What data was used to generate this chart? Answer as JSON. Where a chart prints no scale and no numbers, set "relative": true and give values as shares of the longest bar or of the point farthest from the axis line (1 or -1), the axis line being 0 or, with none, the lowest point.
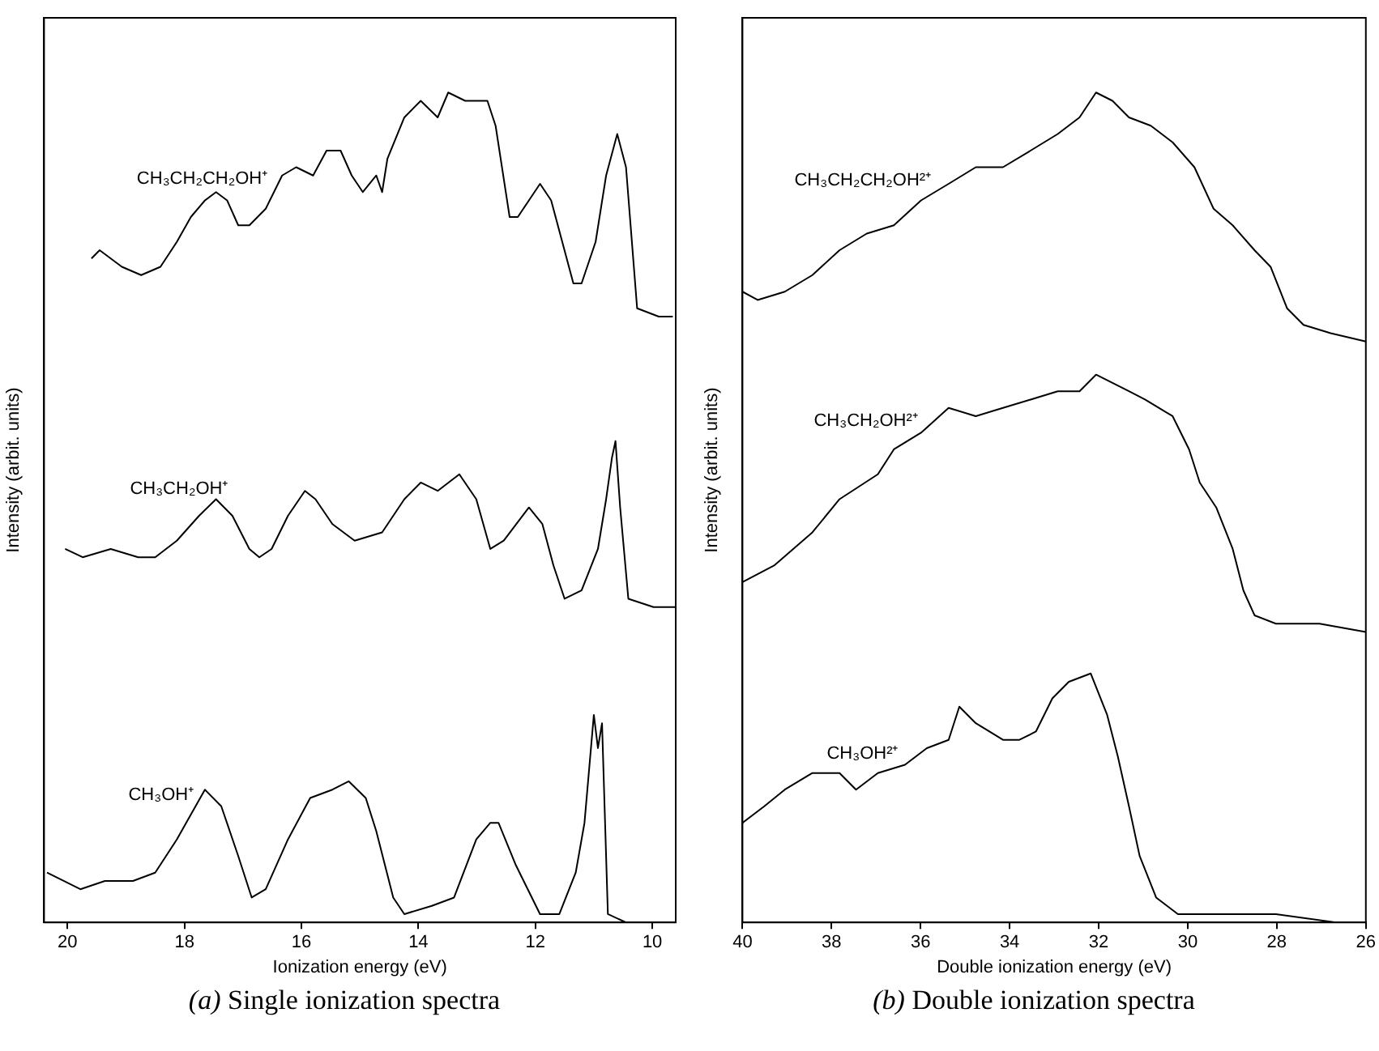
{
  "chart_data": [
    {
      "type": "line",
      "title": "(a) Single ionization spectra",
      "xlabel": "Ionization energy (eV)",
      "ylabel": "Intensity (arbit. units)",
      "relative": true,
      "xlim": [
        20.4,
        9.6
      ],
      "xticks": [
        20,
        18,
        16,
        14,
        12,
        10
      ],
      "series": [
        {
          "name": "CH₃CH₂CH₂OH⁺",
          "color": "#000000",
          "x": [
            19.59,
            19.45,
            19.07,
            18.74,
            18.41,
            18.13,
            17.89,
            17.65,
            17.46,
            17.27,
            17.08,
            16.89,
            16.61,
            16.33,
            16.09,
            15.8,
            15.57,
            15.33,
            15.14,
            14.95,
            14.72,
            14.62,
            14.53,
            14.24,
            13.96,
            13.67,
            13.49,
            13.2,
            12.82,
            12.68,
            12.44,
            12.3,
            12.11,
            11.92,
            11.73,
            11.54,
            11.35,
            11.21,
            10.97,
            10.79,
            10.6,
            10.45,
            10.26,
            9.89,
            9.65
          ],
          "values": [
            0.8,
            0.81,
            0.79,
            0.78,
            0.79,
            0.82,
            0.85,
            0.87,
            0.88,
            0.87,
            0.84,
            0.84,
            0.86,
            0.9,
            0.91,
            0.9,
            0.93,
            0.93,
            0.9,
            0.88,
            0.9,
            0.88,
            0.92,
            0.97,
            0.99,
            0.97,
            1.0,
            0.99,
            0.99,
            0.96,
            0.85,
            0.85,
            0.87,
            0.89,
            0.87,
            0.82,
            0.77,
            0.77,
            0.82,
            0.9,
            0.95,
            0.91,
            0.74,
            0.73,
            0.73
          ]
        },
        {
          "name": "CH₃CH₂OH⁺",
          "color": "#000000",
          "x": [
            20.04,
            19.74,
            19.26,
            18.79,
            18.5,
            18.13,
            17.75,
            17.46,
            17.18,
            16.89,
            16.72,
            16.51,
            16.23,
            15.94,
            15.76,
            15.47,
            15.09,
            14.62,
            14.24,
            13.96,
            13.67,
            13.3,
            13.01,
            12.77,
            12.54,
            12.11,
            11.88,
            11.69,
            11.5,
            11.21,
            10.93,
            10.79,
            10.69,
            10.63,
            10.55,
            10.41,
            9.98,
            9.6
          ],
          "values": [
            0.45,
            0.44,
            0.45,
            0.44,
            0.44,
            0.46,
            0.49,
            0.51,
            0.49,
            0.45,
            0.44,
            0.45,
            0.49,
            0.52,
            0.51,
            0.48,
            0.46,
            0.47,
            0.51,
            0.53,
            0.52,
            0.54,
            0.51,
            0.45,
            0.46,
            0.5,
            0.48,
            0.43,
            0.39,
            0.4,
            0.45,
            0.51,
            0.56,
            0.58,
            0.5,
            0.39,
            0.38,
            0.38
          ]
        },
        {
          "name": "CH₃OH⁺",
          "color": "#000000",
          "x": [
            20.35,
            19.78,
            19.36,
            18.88,
            18.5,
            18.13,
            17.65,
            17.37,
            17.08,
            16.85,
            16.61,
            16.23,
            15.85,
            15.47,
            15.19,
            14.9,
            14.72,
            14.43,
            14.24,
            13.77,
            13.39,
            13.01,
            12.77,
            12.63,
            12.34,
            11.92,
            11.59,
            11.31,
            11.16,
            11.0,
            10.93,
            10.86,
            10.76,
            10.45,
            9.98
          ],
          "values": [
            0.06,
            0.04,
            0.05,
            0.05,
            0.06,
            0.1,
            0.16,
            0.14,
            0.08,
            0.03,
            0.04,
            0.1,
            0.15,
            0.16,
            0.17,
            0.15,
            0.11,
            0.03,
            0.01,
            0.02,
            0.03,
            0.1,
            0.12,
            0.12,
            0.07,
            0.01,
            0.01,
            0.06,
            0.12,
            0.25,
            0.21,
            0.24,
            0.01,
            0.0,
            0.0
          ]
        }
      ]
    },
    {
      "type": "line",
      "title": "(b) Double ionization spectra",
      "xlabel": "Double ionization energy (eV)",
      "ylabel": "Intensity (arbit. units)",
      "relative": true,
      "xlim": [
        40,
        26
      ],
      "xticks": [
        40,
        38,
        36,
        34,
        32,
        30,
        28,
        26
      ],
      "series": [
        {
          "name": "CH₃CH₂CH₂OH²⁺",
          "color": "#000000",
          "x": [
            40.0,
            39.66,
            39.05,
            38.43,
            37.82,
            37.21,
            36.6,
            35.99,
            35.37,
            34.76,
            34.15,
            33.53,
            32.92,
            32.43,
            32.06,
            31.69,
            31.32,
            30.83,
            30.34,
            29.85,
            29.42,
            28.99,
            28.5,
            28.14,
            27.77,
            27.4,
            26.79,
            26.0
          ],
          "values": [
            0.76,
            0.75,
            0.76,
            0.78,
            0.81,
            0.83,
            0.84,
            0.87,
            0.89,
            0.91,
            0.91,
            0.93,
            0.95,
            0.97,
            1.0,
            0.99,
            0.97,
            0.96,
            0.94,
            0.91,
            0.86,
            0.84,
            0.81,
            0.79,
            0.74,
            0.72,
            0.71,
            0.7
          ]
        },
        {
          "name": "CH₃CH₂OH²⁺",
          "color": "#000000",
          "x": [
            40.0,
            39.29,
            38.43,
            37.82,
            36.96,
            36.6,
            35.99,
            35.37,
            34.76,
            34.15,
            33.53,
            32.92,
            32.43,
            32.06,
            31.69,
            31.32,
            30.96,
            30.34,
            29.97,
            29.85,
            29.73,
            29.36,
            28.99,
            28.75,
            28.5,
            28.02,
            27.04,
            26.0
          ],
          "values": [
            0.41,
            0.43,
            0.47,
            0.51,
            0.54,
            0.57,
            0.59,
            0.62,
            0.61,
            0.62,
            0.63,
            0.64,
            0.64,
            0.66,
            0.65,
            0.64,
            0.63,
            0.61,
            0.57,
            0.55,
            0.53,
            0.5,
            0.45,
            0.4,
            0.37,
            0.36,
            0.36,
            0.35
          ]
        },
        {
          "name": "CH₃OH²⁺",
          "color": "#000000",
          "x": [
            40.0,
            39.51,
            39.05,
            38.43,
            37.82,
            37.45,
            36.96,
            36.35,
            35.86,
            35.37,
            35.13,
            34.76,
            34.15,
            33.78,
            33.41,
            33.04,
            32.67,
            32.18,
            31.81,
            31.57,
            31.32,
            31.08,
            30.71,
            30.22,
            29.24,
            28.02,
            26.67
          ],
          "values": [
            0.12,
            0.14,
            0.16,
            0.18,
            0.18,
            0.16,
            0.18,
            0.19,
            0.21,
            0.22,
            0.26,
            0.24,
            0.22,
            0.22,
            0.23,
            0.27,
            0.29,
            0.3,
            0.25,
            0.2,
            0.14,
            0.08,
            0.03,
            0.01,
            0.01,
            0.01,
            0.0
          ]
        }
      ]
    }
  ]
}
